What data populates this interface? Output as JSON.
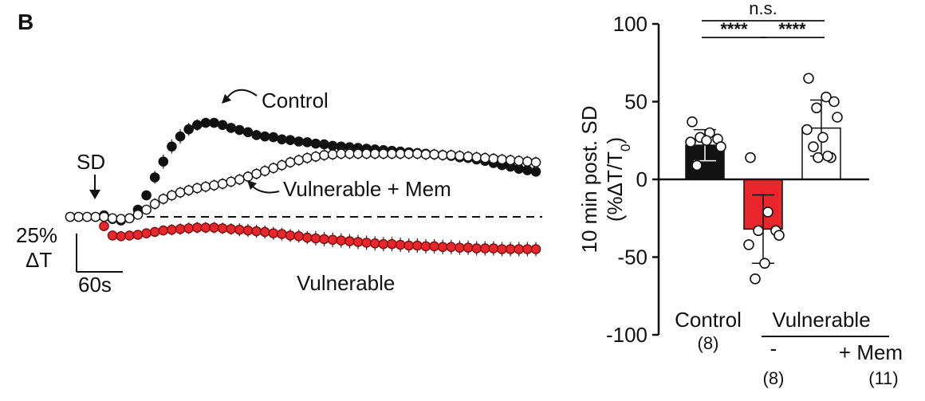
{
  "panel_label": "B",
  "chart_data": [
    {
      "type": "line",
      "markers": "circle",
      "xlim": [
        0,
        1100
      ],
      "ylim": [
        -45,
        165
      ],
      "grid": false,
      "legend": "none",
      "baseline": {
        "y": 0,
        "style": "dashed"
      },
      "annotations": {
        "sd_label": "SD",
        "sd_time": 80,
        "scale_y_value": "25%",
        "scale_y_unit": "ΔT",
        "scale_x": "60s"
      },
      "series": [
        {
          "name": "Control",
          "color": "#111111",
          "fill": "filled",
          "x": [
            0,
            20,
            40,
            60,
            80,
            100,
            120,
            140,
            160,
            180,
            200,
            220,
            240,
            260,
            280,
            300,
            320,
            340,
            360,
            380,
            400,
            420,
            440,
            460,
            480,
            500,
            520,
            540,
            560,
            580,
            600,
            620,
            640,
            660,
            680,
            700,
            720,
            740,
            760,
            780,
            800,
            820,
            840,
            860,
            880,
            900,
            920,
            940,
            960,
            980,
            1000,
            1020,
            1040,
            1060,
            1080,
            1100
          ],
          "y": [
            0,
            0,
            0,
            0,
            2,
            -3,
            -5,
            -2,
            10,
            30,
            55,
            77,
            98,
            112,
            122,
            128,
            131,
            131,
            128,
            124,
            121,
            118,
            114,
            112,
            111,
            108,
            107,
            105,
            104,
            102,
            101,
            99,
            98,
            97,
            96,
            95,
            94,
            93,
            92,
            91,
            90,
            89,
            88,
            87,
            86,
            85,
            83,
            82,
            80,
            78,
            75,
            72,
            70,
            67,
            65,
            63
          ],
          "error": [
            0,
            0,
            0,
            0,
            2,
            3,
            4,
            5,
            6,
            7,
            9,
            10,
            10,
            10,
            9,
            8,
            7,
            6,
            6,
            5,
            5,
            5,
            5,
            5,
            5,
            5,
            5,
            5,
            5,
            5,
            5,
            5,
            5,
            5,
            5,
            5,
            5,
            5,
            5,
            5,
            5,
            5,
            5,
            5,
            5,
            5,
            5,
            5,
            5,
            5,
            5,
            5,
            5,
            5,
            5,
            5
          ]
        },
        {
          "name": "Vulnerable + Mem",
          "color": "#111111",
          "fill": "open",
          "x": [
            0,
            20,
            40,
            60,
            80,
            100,
            120,
            140,
            160,
            180,
            200,
            220,
            240,
            260,
            280,
            300,
            320,
            340,
            360,
            380,
            400,
            420,
            440,
            460,
            480,
            500,
            520,
            540,
            560,
            580,
            600,
            620,
            640,
            660,
            680,
            700,
            720,
            740,
            760,
            780,
            800,
            820,
            840,
            860,
            880,
            900,
            920,
            940,
            960,
            980,
            1000,
            1020,
            1040,
            1060,
            1080,
            1100
          ],
          "y": [
            0,
            0,
            0,
            0,
            0,
            -2,
            -3,
            -2,
            3,
            10,
            18,
            25,
            30,
            34,
            37,
            40,
            42,
            44,
            46,
            49,
            52,
            56,
            60,
            64,
            68,
            72,
            76,
            79,
            82,
            84,
            86,
            87,
            88,
            88,
            88,
            88,
            88,
            88,
            88,
            88,
            88,
            88,
            87,
            87,
            86,
            86,
            85,
            84,
            83,
            82,
            81,
            80,
            79,
            78,
            77,
            76
          ],
          "error": [
            0,
            0,
            0,
            0,
            2,
            3,
            4,
            5,
            6,
            7,
            8,
            8,
            8,
            8,
            8,
            8,
            8,
            8,
            8,
            8,
            8,
            8,
            8,
            8,
            8,
            8,
            8,
            8,
            8,
            8,
            8,
            8,
            8,
            8,
            8,
            8,
            8,
            8,
            8,
            8,
            8,
            8,
            8,
            8,
            8,
            8,
            8,
            8,
            8,
            8,
            8,
            8,
            8,
            8,
            8,
            8
          ]
        },
        {
          "name": "Vulnerable",
          "color": "#e8262b",
          "fill": "filled",
          "x": [
            80,
            100,
            120,
            140,
            160,
            180,
            200,
            220,
            240,
            260,
            280,
            300,
            320,
            340,
            360,
            380,
            400,
            420,
            440,
            460,
            480,
            500,
            520,
            540,
            560,
            580,
            600,
            620,
            640,
            660,
            680,
            700,
            720,
            740,
            760,
            780,
            800,
            820,
            840,
            860,
            880,
            900,
            920,
            940,
            960,
            980,
            1000,
            1020,
            1040,
            1060,
            1080,
            1100
          ],
          "y": [
            -13,
            -26,
            -27,
            -26,
            -25,
            -23,
            -21,
            -19,
            -18,
            -17,
            -16,
            -15,
            -15,
            -15,
            -16,
            -17,
            -18,
            -19,
            -20,
            -21,
            -23,
            -24,
            -26,
            -27,
            -29,
            -30,
            -31,
            -32,
            -33,
            -34,
            -35,
            -36,
            -37,
            -38,
            -38,
            -39,
            -40,
            -40,
            -41,
            -41,
            -42,
            -42,
            -43,
            -43,
            -44,
            -44,
            -44,
            -45,
            -45,
            -45,
            -45,
            -45
          ],
          "error": [
            2,
            4,
            5,
            6,
            6,
            7,
            7,
            7,
            8,
            8,
            8,
            8,
            8,
            8,
            8,
            8,
            9,
            9,
            9,
            9,
            9,
            9,
            9,
            9,
            9,
            10,
            10,
            10,
            10,
            10,
            10,
            10,
            10,
            10,
            10,
            10,
            10,
            10,
            10,
            10,
            10,
            10,
            10,
            10,
            10,
            10,
            10,
            10,
            10,
            10,
            10,
            10
          ]
        }
      ],
      "labels": {
        "control": "Control",
        "vulnerable_mem": "Vulnerable + Mem",
        "vulnerable": "Vulnerable"
      }
    },
    {
      "type": "bar",
      "ylabel_line1": "10 min post. SD",
      "ylabel_line2": "(%ΔT/T",
      "ylabel_sub": "0",
      "ylabel_close": ")",
      "ylim": [
        -100,
        100
      ],
      "yticks": [
        {
          "value": 100,
          "label": "100"
        },
        {
          "value": 50,
          "label": "50"
        },
        {
          "value": 0,
          "label": "0"
        },
        {
          "value": -50,
          "label": "-50"
        },
        {
          "value": -100,
          "label": "-100"
        }
      ],
      "grid": false,
      "bars": [
        {
          "key": "control",
          "label": "Control",
          "n": "(8)",
          "mean": 22,
          "sd": 10,
          "color": "#111111",
          "points": [
            37,
            30,
            26,
            27,
            21,
            24,
            25,
            9
          ]
        },
        {
          "key": "vulnerable",
          "label": "-",
          "n": "(8)",
          "mean": -32,
          "sd": 22,
          "color": "#e8262b",
          "points": [
            14,
            -21,
            -33,
            -33,
            -36,
            -42,
            -54,
            -64
          ]
        },
        {
          "key": "vulnerable_mem",
          "label": "+ Mem",
          "n": "(11)",
          "mean": 33,
          "sd": 18,
          "color": "#ffffff",
          "points": [
            65,
            53,
            50,
            46,
            40,
            32,
            27,
            21,
            14,
            14,
            15
          ]
        }
      ],
      "group_label": "Vulnerable",
      "significance": [
        {
          "from": 0,
          "to": 1,
          "label": "****"
        },
        {
          "from": 1,
          "to": 2,
          "label": "****"
        },
        {
          "from": 0,
          "to": 2,
          "label": "n.s."
        }
      ]
    }
  ]
}
